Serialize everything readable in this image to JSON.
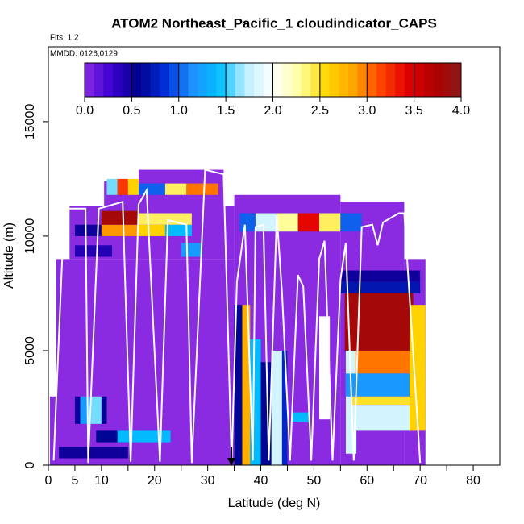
{
  "chart_data": {
    "type": "heatmap",
    "title": "ATOM2 Northeast_Pacific_1 cloudindicator_CAPS",
    "subtitle": "Flts: 1,2",
    "annotation": "MMDD: 0126,0129",
    "xlabel": "Latitude (deg N)",
    "ylabel": "Altitude (m)",
    "xlim": [
      0,
      85
    ],
    "ylim": [
      0,
      18270
    ],
    "xticks": [
      0,
      5,
      10,
      20,
      30,
      40,
      50,
      60,
      70,
      80
    ],
    "xminorticks": [
      15,
      25,
      35,
      45,
      55,
      65,
      75
    ],
    "yticks": [
      0,
      5000,
      10000,
      15000
    ],
    "colorbar": {
      "range": [
        0,
        4
      ],
      "ticks": [
        {
          "value": 0,
          "label": "0.0"
        },
        {
          "value": 0.5,
          "label": "0.5"
        },
        {
          "value": 1,
          "label": "1.0"
        },
        {
          "value": 1.5,
          "label": "1.5"
        },
        {
          "value": 2,
          "label": "2.0"
        },
        {
          "value": 2.5,
          "label": "2.5"
        },
        {
          "value": 3,
          "label": "3.0"
        },
        {
          "value": 3.5,
          "label": "3.5"
        },
        {
          "value": 4,
          "label": "4.0"
        }
      ],
      "colors": [
        "#8a2be2",
        "#3a00d0",
        "#00008b",
        "#0030d8",
        "#1e90ff",
        "#00bfff",
        "#bfefff",
        "#ffffff",
        "#ffffa0",
        "#ffd700",
        "#ffa500",
        "#ff4500",
        "#e00000",
        "#b00000",
        "#8b1a1a"
      ]
    },
    "cells": [
      [
        0.3,
        1.5,
        0,
        3000,
        0
      ],
      [
        1.5,
        35,
        0,
        9000,
        0
      ],
      [
        4,
        35,
        9000,
        11300,
        0
      ],
      [
        10.5,
        33,
        11300,
        12400,
        0
      ],
      [
        17,
        33,
        12400,
        12900,
        0
      ],
      [
        35,
        55,
        0,
        11800,
        0
      ],
      [
        55,
        67,
        0,
        11500,
        0
      ],
      [
        67,
        71,
        0,
        9000,
        0
      ],
      [
        5,
        6,
        1800,
        3000,
        0.5
      ],
      [
        6,
        8,
        1800,
        3000,
        1.2
      ],
      [
        8,
        10,
        1800,
        3000,
        1.6
      ],
      [
        10,
        11,
        1800,
        3000,
        0.6
      ],
      [
        9,
        15,
        1000,
        1500,
        0.6
      ],
      [
        13,
        23,
        1000,
        1500,
        1.4
      ],
      [
        2,
        15,
        300,
        800,
        0.5
      ],
      [
        11,
        13,
        11800,
        12500,
        1.6
      ],
      [
        13,
        15,
        11800,
        12500,
        3.2
      ],
      [
        15,
        17,
        11800,
        12500,
        2.6
      ],
      [
        17,
        22,
        11800,
        12300,
        1.0
      ],
      [
        22,
        26,
        11800,
        12300,
        2.4
      ],
      [
        26,
        32,
        11800,
        12300,
        3.0
      ],
      [
        5,
        10,
        10000,
        10500,
        0.5
      ],
      [
        10,
        17,
        10000,
        10500,
        2.9
      ],
      [
        10,
        17,
        10500,
        11100,
        3.8
      ],
      [
        17,
        22,
        10000,
        10500,
        2.6
      ],
      [
        22,
        27,
        10000,
        10500,
        1.4
      ],
      [
        17,
        27,
        10500,
        11000,
        2.4
      ],
      [
        25,
        29,
        9100,
        9700,
        1.2
      ],
      [
        5,
        12,
        9100,
        9600,
        0.4
      ],
      [
        36,
        39,
        10200,
        11000,
        1.0
      ],
      [
        39,
        43,
        10200,
        11000,
        1.8
      ],
      [
        43,
        47,
        10200,
        11000,
        2.3
      ],
      [
        47,
        51,
        10200,
        11000,
        3.4
      ],
      [
        51,
        55,
        10200,
        11000,
        2.4
      ],
      [
        55,
        59,
        10200,
        11000,
        1.0
      ],
      [
        35,
        36.5,
        0,
        7000,
        0.6
      ],
      [
        36.5,
        38,
        0,
        7000,
        2.8
      ],
      [
        38,
        40,
        0,
        5500,
        1.4
      ],
      [
        40,
        42,
        0,
        4500,
        0.6
      ],
      [
        42,
        44,
        0,
        5000,
        1.8
      ],
      [
        44,
        45,
        0,
        5000,
        0.8
      ],
      [
        46,
        49,
        1900,
        2300,
        1.4
      ],
      [
        51,
        53,
        2000,
        6500,
        2.0
      ],
      [
        56,
        58,
        500,
        7500,
        1.8
      ],
      [
        55,
        70,
        8000,
        8500,
        0.5
      ],
      [
        55,
        70,
        7500,
        8000,
        0.7
      ],
      [
        55.8,
        68.7,
        5000,
        7500,
        3.8
      ],
      [
        57.8,
        70,
        4000,
        5000,
        3.0
      ],
      [
        56,
        68,
        3000,
        4000,
        1.2
      ],
      [
        57,
        70,
        2600,
        3000,
        2.5
      ],
      [
        57,
        69,
        1500,
        2600,
        1.8
      ],
      [
        68,
        71,
        1500,
        7000,
        2.6
      ]
    ],
    "track": {
      "color": "#ffffff",
      "x": [
        1,
        3,
        7,
        7.5,
        9.5,
        14,
        15.5,
        17,
        18.5,
        21,
        22.5,
        26,
        27,
        29.5,
        33,
        34.5,
        35.5,
        37,
        38.5,
        39,
        40.5,
        41.5,
        43,
        44,
        45.5,
        47,
        48,
        49.5,
        51,
        52,
        53.5,
        55,
        56,
        57.5,
        59,
        61,
        62,
        63,
        66,
        67,
        70
      ],
      "y": [
        200,
        11200,
        11200,
        100,
        11200,
        11500,
        150,
        11400,
        12000,
        150,
        10700,
        10500,
        100,
        12900,
        12700,
        100,
        8000,
        10500,
        200,
        10400,
        10500,
        200,
        10900,
        7500,
        200,
        8300,
        7800,
        200,
        9000,
        9800,
        200,
        8100,
        9700,
        200,
        10400,
        10500,
        9600,
        10600,
        11000,
        11000,
        100
      ]
    }
  }
}
